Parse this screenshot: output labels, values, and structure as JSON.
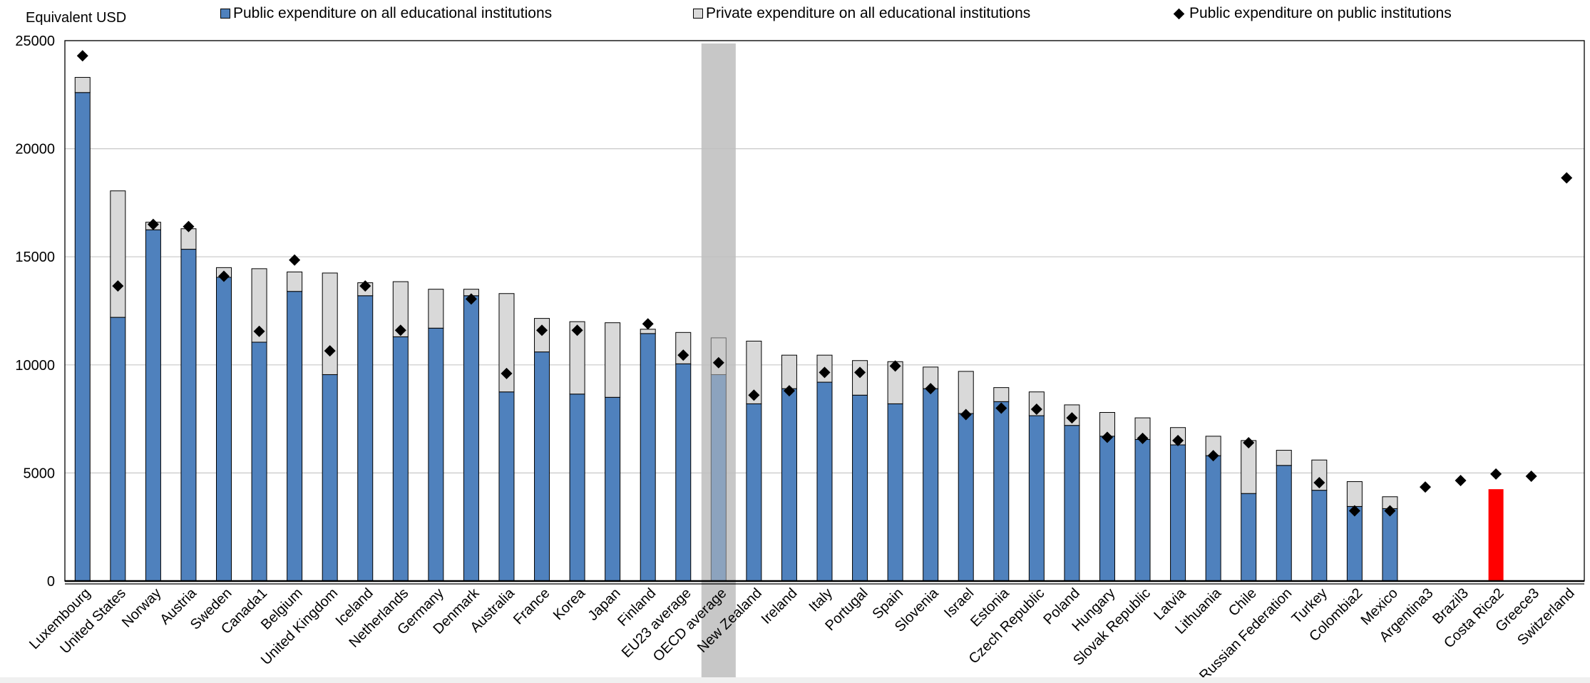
{
  "chart_data": {
    "type": "bar",
    "stacked": true,
    "ylabel": "Equivalent USD",
    "ylim": [
      0,
      25000
    ],
    "yticks": [
      0,
      5000,
      10000,
      15000,
      20000,
      25000
    ],
    "grid": true,
    "legend_position": "top",
    "highlight_category": "OECD average",
    "categories": [
      "Luxembourg",
      "United States",
      "Norway",
      "Austria",
      "Sweden",
      "Canada1",
      "Belgium",
      "United Kingdom",
      "Iceland",
      "Netherlands",
      "Germany",
      "Denmark",
      "Australia",
      "France",
      "Korea",
      "Japan",
      "Finland",
      "EU23 average",
      "OECD average",
      "New Zealand",
      "Ireland",
      "Italy",
      "Portugal",
      "Spain",
      "Slovenia",
      "Israel",
      "Estonia",
      "Czech Republic",
      "Poland",
      "Hungary",
      "Slovak Republic",
      "Latvia",
      "Lithuania",
      "Chile",
      "Russian Federation",
      "Turkey",
      "Colombia2",
      "Mexico",
      "Argentina3",
      "Brazil3",
      "Costa Rica2",
      "Greece3",
      "Switzerland"
    ],
    "series": [
      {
        "name": "Public expenditure on all educational institutions",
        "kind": "bar",
        "color": "#4f81bd",
        "values": [
          22600,
          12200,
          16250,
          15350,
          14050,
          11050,
          13400,
          9550,
          13200,
          11300,
          11700,
          13200,
          8750,
          10600,
          8650,
          8500,
          11450,
          10050,
          9550,
          8200,
          8900,
          9200,
          8600,
          8200,
          8900,
          7750,
          8300,
          7650,
          7200,
          6700,
          6550,
          6300,
          5800,
          4050,
          5350,
          4200,
          3450,
          3350,
          null,
          null,
          4250,
          null,
          null
        ]
      },
      {
        "name": "Private expenditure on all educational institutions",
        "kind": "bar",
        "color": "#d9d9d9",
        "values": [
          700,
          5850,
          350,
          950,
          450,
          3400,
          900,
          4700,
          600,
          2550,
          1800,
          300,
          4550,
          1550,
          3350,
          3450,
          200,
          1450,
          1700,
          2900,
          1550,
          1250,
          1600,
          1950,
          1000,
          1950,
          650,
          1100,
          950,
          1100,
          1000,
          800,
          900,
          2450,
          700,
          1400,
          1150,
          550,
          null,
          null,
          null,
          null,
          null
        ]
      },
      {
        "name": "Public expenditure on public institutions",
        "kind": "marker",
        "color": "#000000",
        "values": [
          24300,
          13650,
          16500,
          16400,
          14100,
          11550,
          14850,
          10650,
          13650,
          11600,
          null,
          13050,
          9600,
          11600,
          11600,
          null,
          11900,
          10450,
          10100,
          8600,
          8800,
          9650,
          9650,
          9950,
          8900,
          7700,
          8000,
          7950,
          7550,
          6650,
          6600,
          6500,
          5800,
          6400,
          null,
          4550,
          3250,
          3250,
          4350,
          4650,
          4950,
          4850,
          18650
        ]
      }
    ],
    "costa_rica_bar_color": "#ff0000"
  }
}
